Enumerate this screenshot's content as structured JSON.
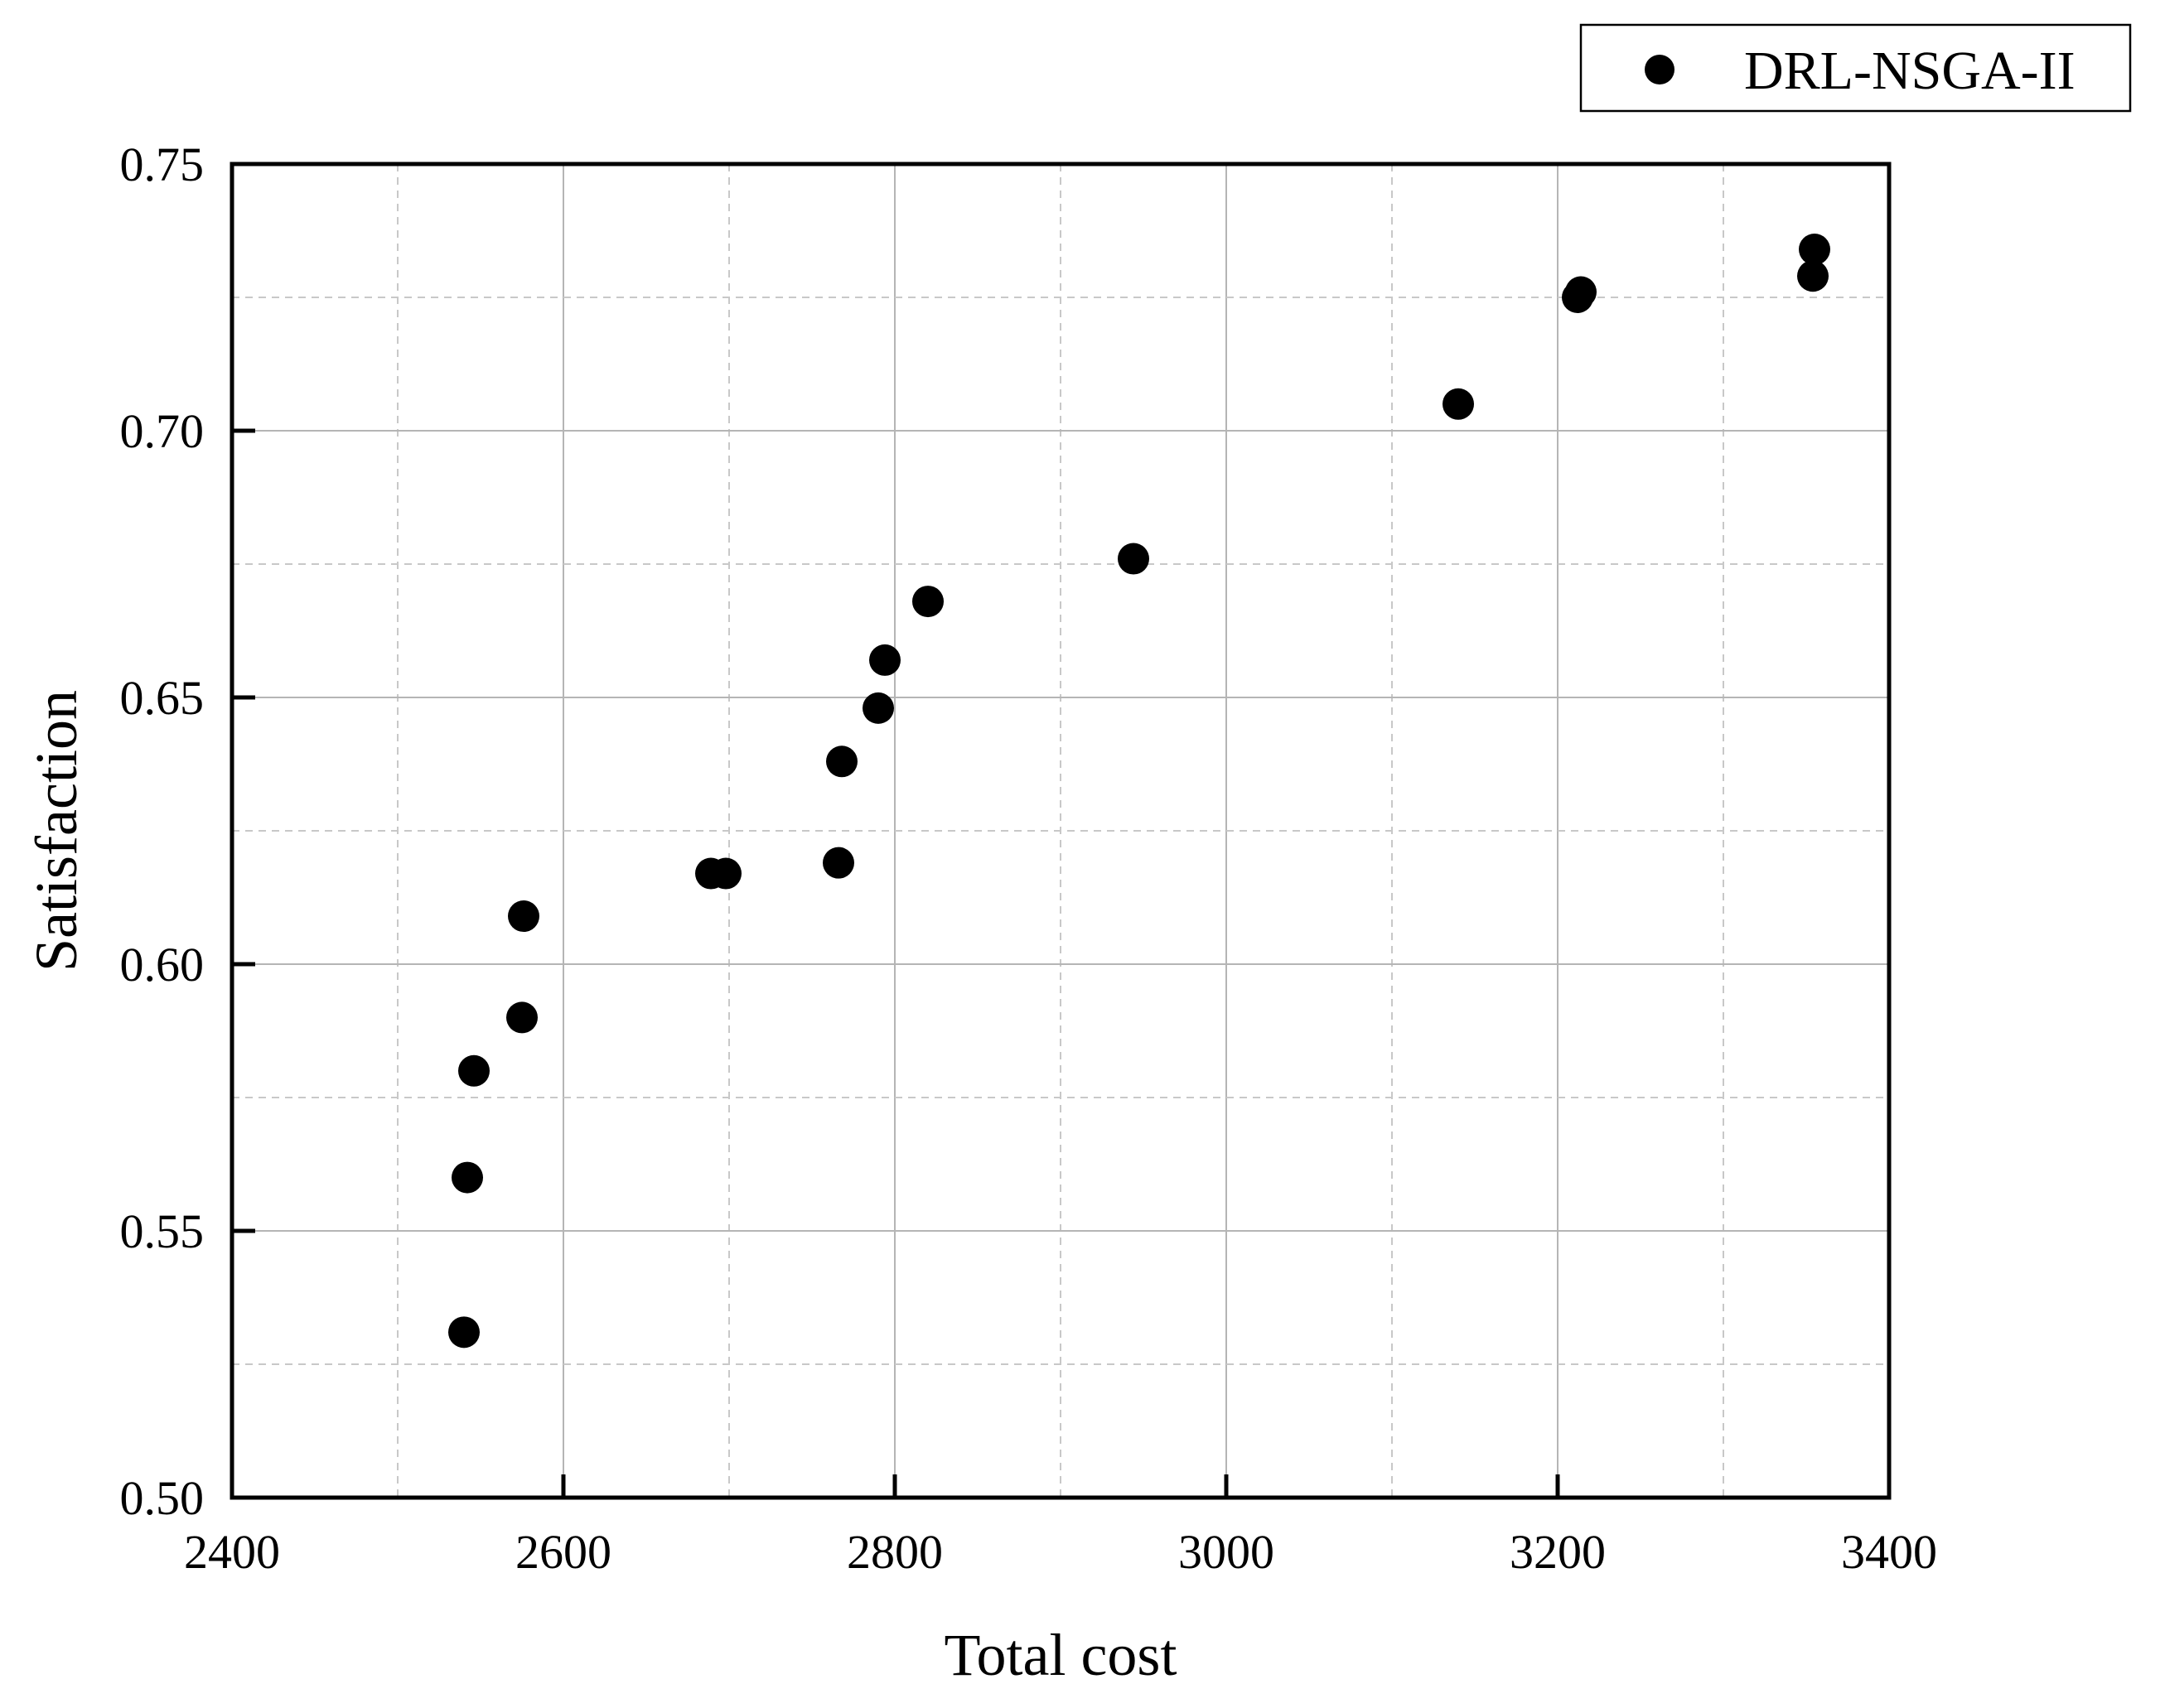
{
  "chart_data": {
    "type": "scatter",
    "title": "",
    "xlabel": "Total cost",
    "ylabel": "Satisfaction",
    "xlim": [
      2400,
      3400
    ],
    "ylim": [
      0.5,
      0.75
    ],
    "x_ticks": [
      2400,
      2600,
      2800,
      3000,
      3200,
      3400
    ],
    "y_ticks": [
      0.5,
      0.55,
      0.6,
      0.65,
      0.7,
      0.75
    ],
    "x_tick_labels": [
      "2400",
      "2600",
      "2800",
      "3000",
      "3200",
      "3400"
    ],
    "y_tick_labels": [
      "0.50",
      "0.55",
      "0.60",
      "0.65",
      "0.70",
      "0.75"
    ],
    "grid": true,
    "legend_position": "top-right, outside plot",
    "series": [
      {
        "name": "DRL-NSGA-II",
        "color": "#000000",
        "marker": "circle",
        "points": [
          {
            "x": 2540,
            "y": 0.531
          },
          {
            "x": 2542,
            "y": 0.56
          },
          {
            "x": 2546,
            "y": 0.58
          },
          {
            "x": 2575,
            "y": 0.59
          },
          {
            "x": 2576,
            "y": 0.609
          },
          {
            "x": 2689,
            "y": 0.617
          },
          {
            "x": 2698,
            "y": 0.617
          },
          {
            "x": 2766,
            "y": 0.619
          },
          {
            "x": 2768,
            "y": 0.638
          },
          {
            "x": 2790,
            "y": 0.648
          },
          {
            "x": 2794,
            "y": 0.657
          },
          {
            "x": 2820,
            "y": 0.668
          },
          {
            "x": 2944,
            "y": 0.676
          },
          {
            "x": 3140,
            "y": 0.705
          },
          {
            "x": 3212,
            "y": 0.725
          },
          {
            "x": 3214,
            "y": 0.726
          },
          {
            "x": 3354,
            "y": 0.729
          },
          {
            "x": 3355,
            "y": 0.734
          }
        ]
      }
    ]
  }
}
